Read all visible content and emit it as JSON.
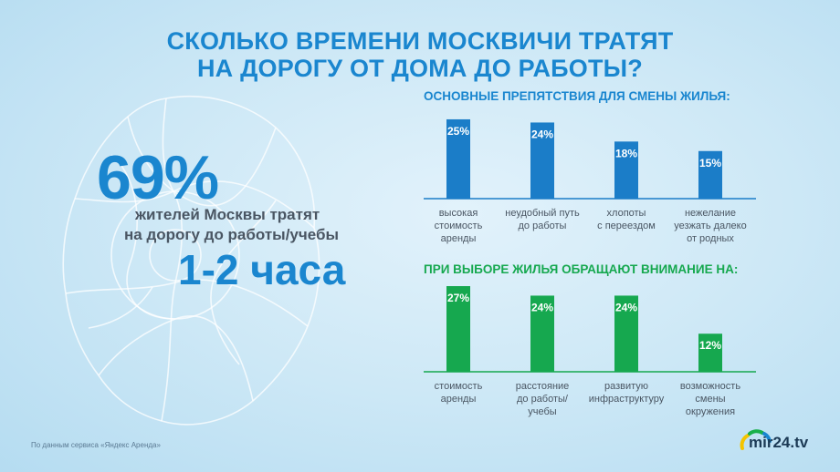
{
  "title": {
    "line1": "СКОЛЬКО ВРЕМЕНИ МОСКВИЧИ ТРАТЯТ",
    "line2": "НА ДОРОГУ ОТ ДОМА ДО РАБОТЫ?"
  },
  "stat": {
    "percent": "69%",
    "line1": "жителей Москвы тратят",
    "line2": "на дорогу до работы/учебы",
    "hours": "1-2 часа"
  },
  "colors": {
    "accent": "#1a86cf",
    "bar_blue": "#1b7dc8",
    "bar_green": "#16a84f",
    "text_dark": "#4a5663"
  },
  "chart_data": [
    {
      "type": "bar",
      "title": "ОСНОВНЫЕ ПРЕПЯТСТВИЯ ДЛЯ СМЕНЫ ЖИЛЬЯ:",
      "categories": [
        [
          "высокая",
          "стоимость",
          "аренды"
        ],
        [
          "неудобный путь",
          "до работы"
        ],
        [
          "хлопоты",
          "с переездом"
        ],
        [
          "нежелание",
          "уезжать далеко",
          "от родных"
        ]
      ],
      "values": [
        25,
        24,
        18,
        15
      ],
      "value_labels": [
        "25%",
        "24%",
        "18%",
        "15%"
      ],
      "unit": "%",
      "color": "#1b7dc8",
      "ylim": [
        0,
        27
      ]
    },
    {
      "type": "bar",
      "title": "ПРИ ВЫБОРЕ ЖИЛЬЯ ОБРАЩАЮТ ВНИМАНИЕ НА:",
      "categories": [
        [
          "стоимость",
          "аренды"
        ],
        [
          "расстояние",
          "до работы/",
          "учебы"
        ],
        [
          "развитую",
          "инфраструктуру"
        ],
        [
          "возможность",
          "смены",
          "окружения"
        ]
      ],
      "values": [
        27,
        24,
        24,
        12
      ],
      "value_labels": [
        "27%",
        "24%",
        "24%",
        "12%"
      ],
      "unit": "%",
      "color": "#16a84f",
      "ylim": [
        0,
        27
      ]
    }
  ],
  "source": "По данным сервиса «Яндекс Аренда»",
  "logo": {
    "text": "mir24.tv"
  }
}
